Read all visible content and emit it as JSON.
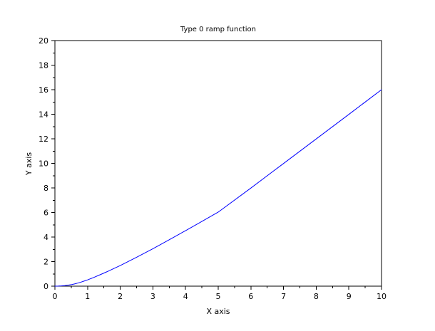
{
  "chart_data": {
    "type": "line",
    "title": "Type 0 ramp function",
    "xlabel": "X axis",
    "ylabel": "Y axis",
    "xlim": [
      0,
      10
    ],
    "ylim": [
      0,
      20
    ],
    "x_ticks": [
      0,
      1,
      2,
      3,
      4,
      5,
      6,
      7,
      8,
      9,
      10
    ],
    "y_ticks": [
      0,
      2,
      4,
      6,
      8,
      10,
      12,
      14,
      16,
      18,
      20
    ],
    "grid": false,
    "series": [
      {
        "color": "#0000ff",
        "x": [
          0,
          0.1,
          0.2,
          0.3,
          0.4,
          0.5,
          0.6,
          0.7,
          0.8,
          0.9,
          1.0,
          1.2,
          1.4,
          1.6,
          1.8,
          2.0,
          2.5,
          3.0,
          3.5,
          4.0,
          4.5,
          5.0,
          6.0,
          7.0,
          8.0,
          9.0,
          10.0
        ],
        "y": [
          0,
          0.005,
          0.02,
          0.045,
          0.08,
          0.12,
          0.18,
          0.25,
          0.33,
          0.42,
          0.51,
          0.72,
          0.95,
          1.18,
          1.43,
          1.68,
          2.35,
          3.05,
          3.78,
          4.52,
          5.27,
          6.03,
          7.99,
          9.99,
          11.99,
          13.99,
          16.0
        ]
      }
    ],
    "colors": {
      "axis": "#000000",
      "line": "#0000ff",
      "background": "#ffffff"
    }
  }
}
